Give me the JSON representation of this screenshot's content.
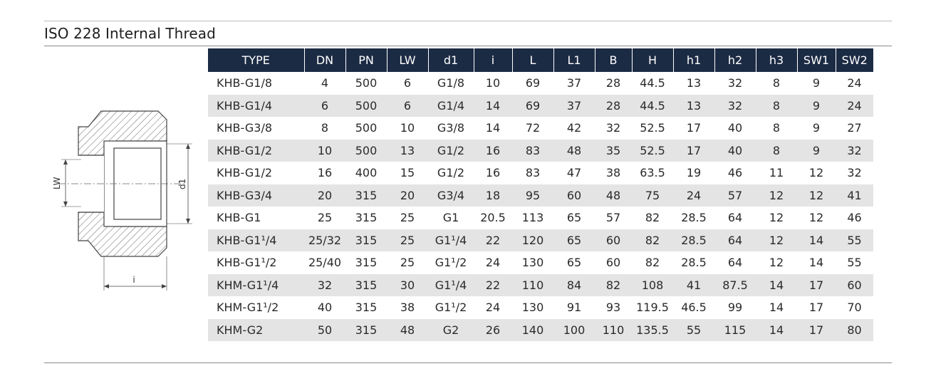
{
  "title": "ISO 228 Internal Thread",
  "drawing": {
    "label_lw": "LW",
    "label_d1": "d1",
    "label_i": "i"
  },
  "columns": [
    "TYPE",
    "DN",
    "PN",
    "LW",
    "d1",
    "i",
    "L",
    "L1",
    "B",
    "H",
    "h1",
    "h2",
    "h3",
    "SW1",
    "SW2"
  ],
  "rows": [
    {
      "type": "KHB-G1/8",
      "dn": "4",
      "pn": "500",
      "lw": "6",
      "d1": "G1/8",
      "i": "10",
      "l": "69",
      "l1": "37",
      "b": "28",
      "h": "44.5",
      "h1": "13",
      "h2": "32",
      "h3": "8",
      "sw1": "9",
      "sw2": "24"
    },
    {
      "type": "KHB-G1/4",
      "dn": "6",
      "pn": "500",
      "lw": "6",
      "d1": "G1/4",
      "i": "14",
      "l": "69",
      "l1": "37",
      "b": "28",
      "h": "44.5",
      "h1": "13",
      "h2": "32",
      "h3": "8",
      "sw1": "9",
      "sw2": "24"
    },
    {
      "type": "KHB-G3/8",
      "dn": "8",
      "pn": "500",
      "lw": "10",
      "d1": "G3/8",
      "i": "14",
      "l": "72",
      "l1": "42",
      "b": "32",
      "h": "52.5",
      "h1": "17",
      "h2": "40",
      "h3": "8",
      "sw1": "9",
      "sw2": "27"
    },
    {
      "type": "KHB-G1/2",
      "dn": "10",
      "pn": "500",
      "lw": "13",
      "d1": "G1/2",
      "i": "16",
      "l": "83",
      "l1": "48",
      "b": "35",
      "h": "52.5",
      "h1": "17",
      "h2": "40",
      "h3": "8",
      "sw1": "9",
      "sw2": "32"
    },
    {
      "type": "KHB-G1/2",
      "dn": "16",
      "pn": "400",
      "lw": "15",
      "d1": "G1/2",
      "i": "16",
      "l": "83",
      "l1": "47",
      "b": "38",
      "h": "63.5",
      "h1": "19",
      "h2": "46",
      "h3": "11",
      "sw1": "12",
      "sw2": "32"
    },
    {
      "type": "KHB-G3/4",
      "dn": "20",
      "pn": "315",
      "lw": "20",
      "d1": "G3/4",
      "i": "18",
      "l": "95",
      "l1": "60",
      "b": "48",
      "h": "75",
      "h1": "24",
      "h2": "57",
      "h3": "12",
      "sw1": "12",
      "sw2": "41"
    },
    {
      "type": "KHB-G1",
      "dn": "25",
      "pn": "315",
      "lw": "25",
      "d1": "G1",
      "i": "20.5",
      "l": "113",
      "l1": "65",
      "b": "57",
      "h": "82",
      "h1": "28.5",
      "h2": "64",
      "h3": "12",
      "sw1": "12",
      "sw2": "46"
    },
    {
      "type": "KHB-G1¹/4",
      "dn": "25/32",
      "pn": "315",
      "lw": "25",
      "d1": "G1¹/4",
      "i": "22",
      "l": "120",
      "l1": "65",
      "b": "60",
      "h": "82",
      "h1": "28.5",
      "h2": "64",
      "h3": "12",
      "sw1": "14",
      "sw2": "55"
    },
    {
      "type": "KHB-G1¹/2",
      "dn": "25/40",
      "pn": "315",
      "lw": "25",
      "d1": "G1¹/2",
      "i": "24",
      "l": "130",
      "l1": "65",
      "b": "60",
      "h": "82",
      "h1": "28.5",
      "h2": "64",
      "h3": "12",
      "sw1": "14",
      "sw2": "55"
    },
    {
      "type": "KHM-G1¹/4",
      "dn": "32",
      "pn": "315",
      "lw": "30",
      "d1": "G1¹/4",
      "i": "22",
      "l": "110",
      "l1": "84",
      "b": "82",
      "h": "108",
      "h1": "41",
      "h2": "87.5",
      "h3": "14",
      "sw1": "17",
      "sw2": "60"
    },
    {
      "type": "KHM-G1¹/2",
      "dn": "40",
      "pn": "315",
      "lw": "38",
      "d1": "G1¹/2",
      "i": "24",
      "l": "130",
      "l1": "91",
      "b": "93",
      "h": "119.5",
      "h1": "46.5",
      "h2": "99",
      "h3": "14",
      "sw1": "17",
      "sw2": "70"
    },
    {
      "type": "KHM-G2",
      "dn": "50",
      "pn": "315",
      "lw": "48",
      "d1": "G2",
      "i": "26",
      "l": "140",
      "l1": "100",
      "b": "110",
      "h": "135.5",
      "h1": "55",
      "h2": "115",
      "h3": "14",
      "sw1": "17",
      "sw2": "80"
    }
  ],
  "colors": {
    "header_bg": "#1c2b44",
    "header_text": "#ffffff",
    "stripe": "#e4e4e4"
  }
}
